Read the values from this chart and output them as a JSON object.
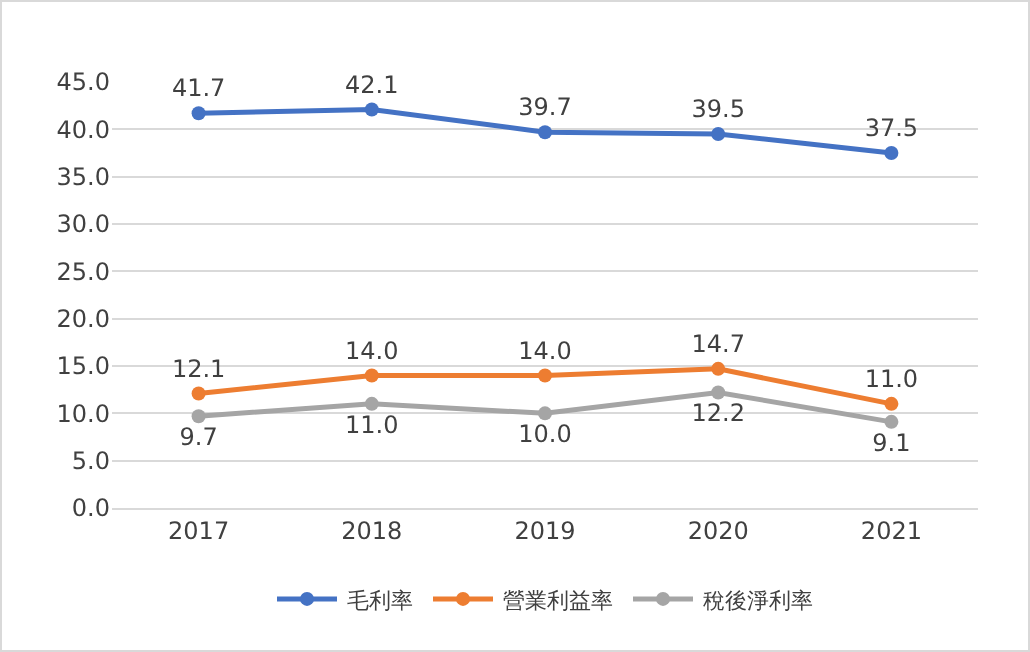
{
  "chart_data": {
    "type": "line",
    "categories": [
      "2017",
      "2018",
      "2019",
      "2020",
      "2021"
    ],
    "series": [
      {
        "name": "毛利率",
        "color": "#4472c4",
        "values": [
          41.7,
          42.1,
          39.7,
          39.5,
          37.5
        ],
        "value_labels": [
          "41.7",
          "42.1",
          "39.7",
          "39.5",
          "37.5"
        ]
      },
      {
        "name": "營業利益率",
        "color": "#ed7d31",
        "values": [
          12.1,
          14.0,
          14.0,
          14.7,
          11.0
        ],
        "value_labels": [
          "12.1",
          "14.0",
          "14.0",
          "14.7",
          "11.0"
        ]
      },
      {
        "name": "稅後淨利率",
        "color": "#a5a5a5",
        "values": [
          9.7,
          11.0,
          10.0,
          12.2,
          9.1
        ],
        "value_labels": [
          "9.7",
          "11.0",
          "10.0",
          "12.2",
          "9.1"
        ]
      }
    ],
    "ylim": [
      0,
      45
    ],
    "yticks": [
      {
        "value": 0,
        "label": "0.0"
      },
      {
        "value": 5,
        "label": "5.0"
      },
      {
        "value": 10,
        "label": "10.0"
      },
      {
        "value": 15,
        "label": "15.0"
      },
      {
        "value": 20,
        "label": "20.0"
      },
      {
        "value": 25,
        "label": "25.0"
      },
      {
        "value": 30,
        "label": "30.0"
      },
      {
        "value": 35,
        "label": "35.0"
      },
      {
        "value": 40,
        "label": "40.0"
      },
      {
        "value": 45,
        "label": "45.0"
      }
    ],
    "grid": "y",
    "legend": "bottom",
    "marker": "circle",
    "line_style": "solid"
  }
}
